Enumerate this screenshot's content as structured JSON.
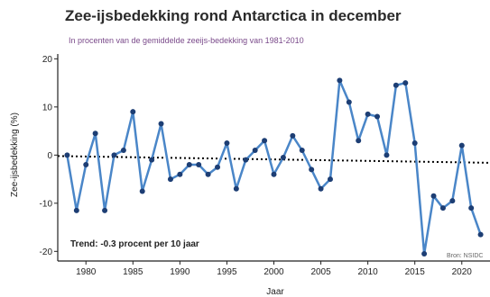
{
  "chart_data": {
    "type": "line",
    "title": "Zee-ijsbedekking rond Antarctica in december",
    "subtitle": "In procenten van de gemiddelde zeeijs-bedekking van 1981-2010",
    "ylabel": "Zee-ijsbedekking (%)",
    "xlabel": "Jaar",
    "ylim": [
      -22,
      21
    ],
    "xlim": [
      1977,
      2023
    ],
    "yticks": [
      20,
      10,
      0,
      -10,
      -20
    ],
    "xticks": [
      1980,
      1985,
      1990,
      1995,
      2000,
      2005,
      2010,
      2015,
      2020
    ],
    "annotation": "Trend: -0.3 procent per 10 jaar",
    "source": "Bron: NSIDC",
    "grid": false,
    "series": [
      {
        "color": "#4a86c8",
        "x": [
          1978,
          1979,
          1980,
          1981,
          1982,
          1983,
          1984,
          1985,
          1986,
          1987,
          1988,
          1989,
          1990,
          1991,
          1992,
          1993,
          1994,
          1995,
          1996,
          1997,
          1998,
          1999,
          2000,
          2001,
          2002,
          2003,
          2004,
          2005,
          2006,
          2007,
          2008,
          2009,
          2010,
          2011,
          2012,
          2013,
          2014,
          2015,
          2016,
          2017,
          2018,
          2019,
          2020,
          2021,
          2022
        ],
        "values": [
          0,
          -11.5,
          -2,
          4.5,
          -11.5,
          0,
          1,
          9,
          -7.5,
          -1,
          6.5,
          -5,
          -4,
          -2,
          -2,
          -4,
          -2.5,
          2.5,
          -7,
          -1,
          1,
          3,
          -4,
          -0.5,
          4,
          1,
          -3,
          -7,
          -5,
          15.5,
          11,
          3,
          8.5,
          8,
          0,
          14.5,
          15,
          2.5,
          -20.5,
          -8.5,
          -11,
          -9.5,
          2,
          -11,
          -16.5
        ]
      }
    ],
    "trend": {
      "color": "#000000",
      "start": [
        1977,
        -0.2
      ],
      "end": [
        2023,
        -1.6
      ]
    }
  }
}
